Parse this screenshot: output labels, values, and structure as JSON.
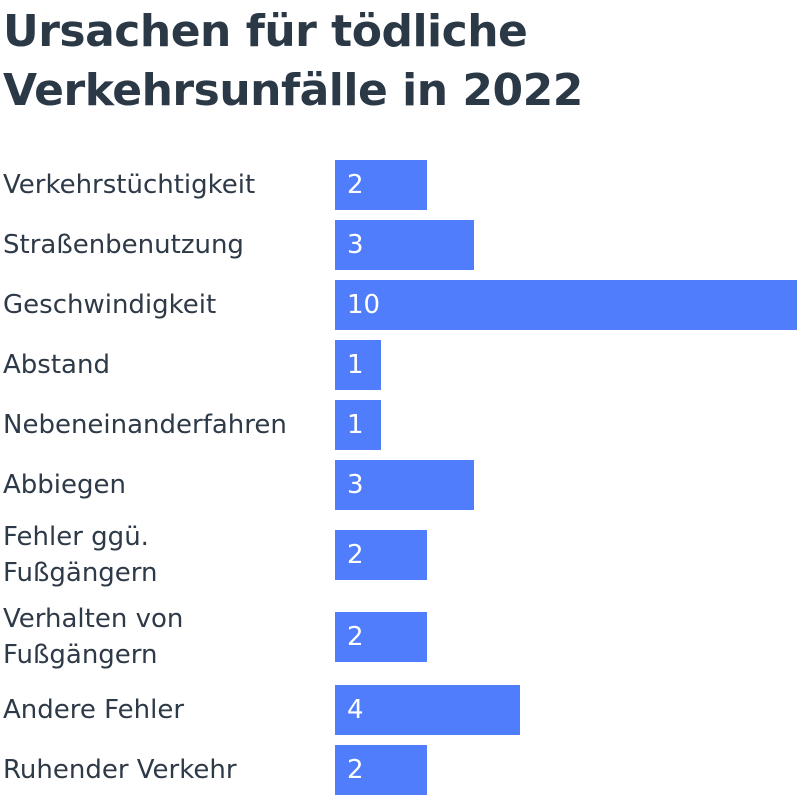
{
  "chart_data": {
    "type": "bar",
    "orientation": "horizontal",
    "title": "Ursachen für tödliche Verkehrsunfälle in 2022",
    "categories": [
      "Verkehrstüchtigkeit",
      "Straßenbenutzung",
      "Geschwindigkeit",
      "Abstand",
      "Nebeneinanderfahren",
      "Abbiegen",
      "Fehler ggü.\nFußgängern",
      "Verhalten von\nFußgängern",
      "Andere Fehler",
      "Ruhender Verkehr"
    ],
    "values": [
      2,
      3,
      10,
      1,
      1,
      3,
      2,
      2,
      4,
      2
    ],
    "xlim": [
      0,
      10
    ],
    "grid": false,
    "legend": "none",
    "bar_color": "#4f7dfb",
    "value_label_color": "#ffffff"
  }
}
